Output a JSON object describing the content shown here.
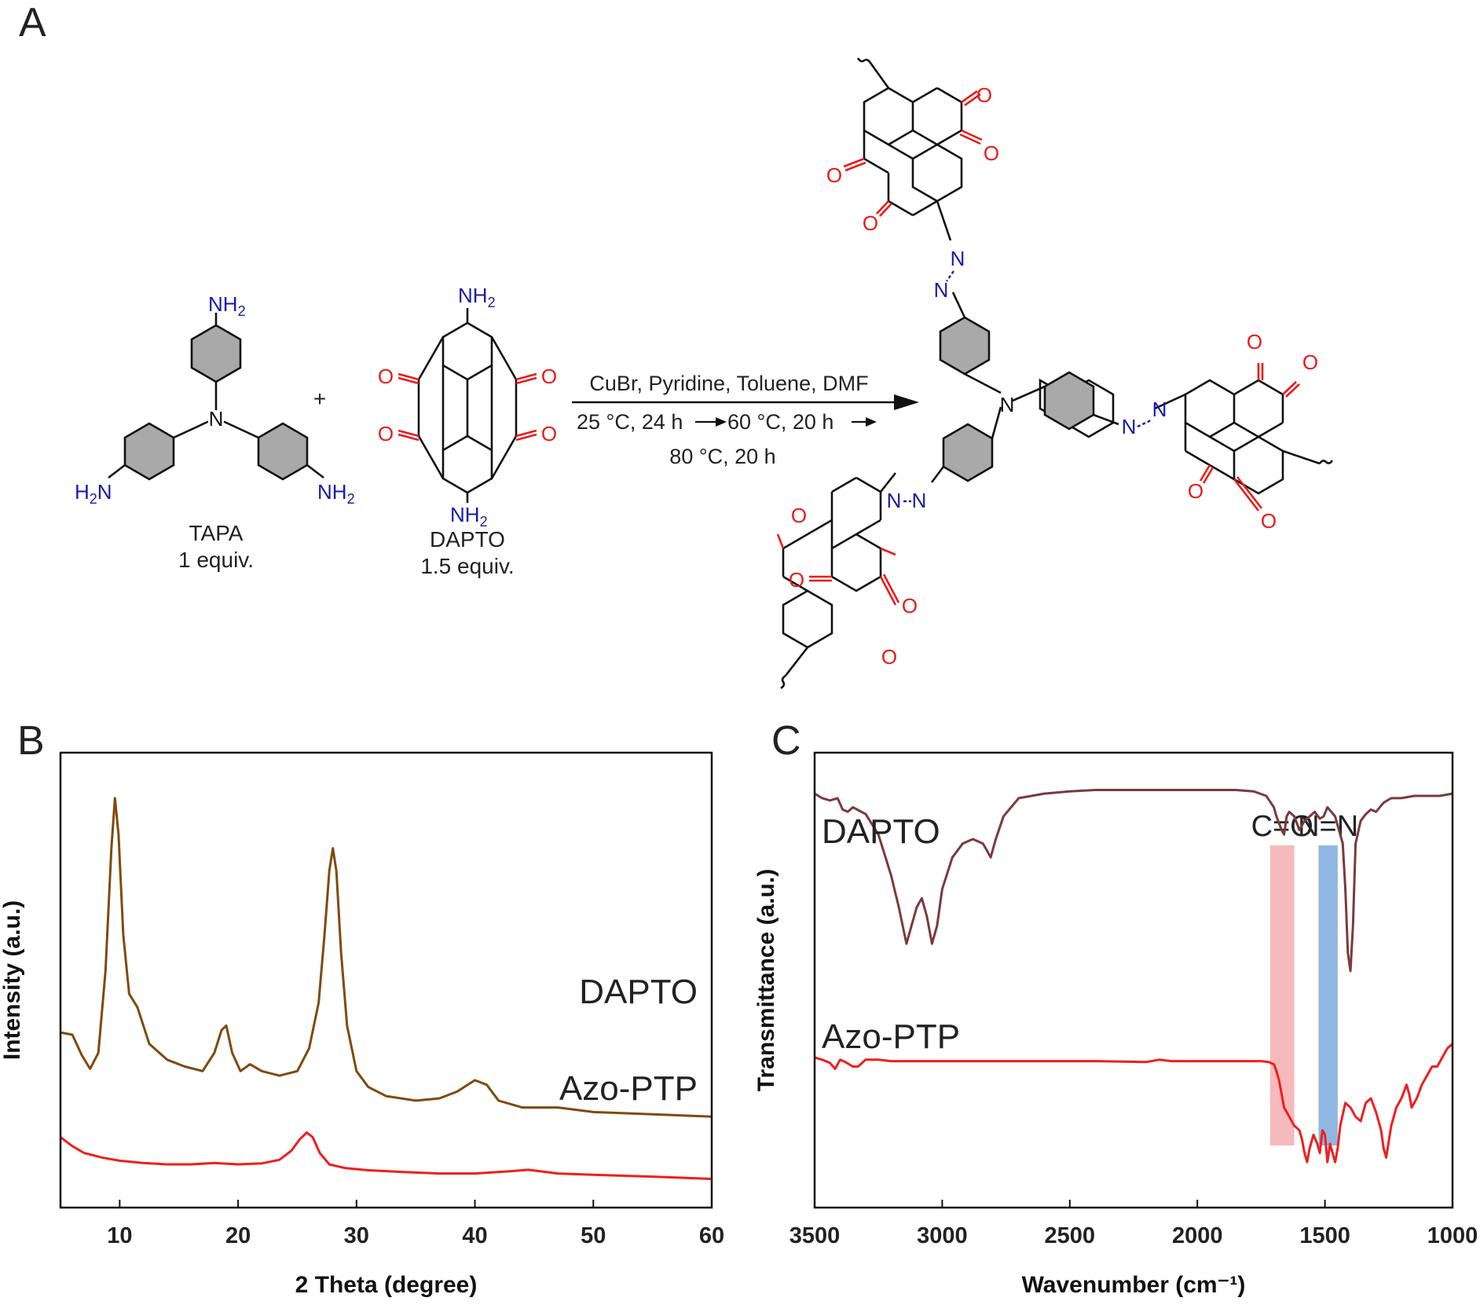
{
  "panels": {
    "a": {
      "letter": "A",
      "tapa": {
        "nh2_top": "NH",
        "nh2_left": "H",
        "nh2_left_n": "N",
        "nh2_right": "NH",
        "sub": "2",
        "name": "TAPA",
        "equiv": "1 equiv."
      },
      "plus": "+",
      "dapto": {
        "nh2": "NH",
        "sub": "2",
        "o": "O",
        "name": "DAPTO",
        "equiv": "1.5 equiv."
      },
      "conditions": {
        "line1": "CuBr, Pyridine, Toluene, DMF",
        "line2a": "25 °C, 24 h",
        "line2b": "60 °C, 20 h",
        "line3": "80 °C, 20 h"
      },
      "product": {
        "n": "N",
        "o": "O"
      }
    },
    "b": {
      "letter": "B"
    },
    "c": {
      "letter": "C"
    }
  },
  "chart_data": [
    {
      "type": "line",
      "xlabel": "2 Theta (degree)",
      "ylabel": "Intensity (a.u.)",
      "xlim": [
        5,
        60
      ],
      "ylim": [
        0,
        1
      ],
      "xticks": [
        10,
        20,
        30,
        40,
        50,
        60
      ],
      "series": [
        {
          "name": "DAPTO",
          "color": "#7f4a0f",
          "x": [
            5,
            6,
            6.8,
            7.5,
            8.2,
            8.8,
            9.3,
            9.6,
            9.9,
            10.3,
            10.8,
            11.5,
            12.5,
            14,
            15.5,
            17,
            18,
            18.6,
            19,
            19.5,
            20.2,
            21,
            22,
            23.5,
            25,
            26,
            26.8,
            27.3,
            27.7,
            28,
            28.3,
            28.7,
            29.2,
            30,
            31,
            32.5,
            35,
            37,
            38.5,
            40,
            41,
            42,
            44,
            47,
            50,
            55,
            60
          ],
          "y": [
            0.385,
            0.38,
            0.335,
            0.305,
            0.34,
            0.52,
            0.79,
            0.9,
            0.82,
            0.6,
            0.47,
            0.44,
            0.36,
            0.325,
            0.31,
            0.3,
            0.34,
            0.39,
            0.4,
            0.34,
            0.3,
            0.315,
            0.3,
            0.29,
            0.3,
            0.35,
            0.45,
            0.6,
            0.74,
            0.79,
            0.74,
            0.56,
            0.4,
            0.3,
            0.265,
            0.245,
            0.235,
            0.24,
            0.255,
            0.28,
            0.27,
            0.235,
            0.22,
            0.22,
            0.21,
            0.205,
            0.2
          ]
        },
        {
          "name": "Azo-PTP",
          "color": "#ee1f1f",
          "x": [
            5,
            6,
            7,
            8.5,
            10,
            12,
            14,
            16,
            18,
            20,
            22,
            23.5,
            24.5,
            25.2,
            25.8,
            26.3,
            26.9,
            27.7,
            29,
            31,
            34,
            37,
            40,
            43,
            44.5,
            47,
            50,
            55,
            60
          ],
          "y": [
            0.155,
            0.135,
            0.12,
            0.11,
            0.103,
            0.098,
            0.095,
            0.095,
            0.098,
            0.095,
            0.097,
            0.105,
            0.125,
            0.15,
            0.165,
            0.155,
            0.12,
            0.095,
            0.087,
            0.082,
            0.078,
            0.075,
            0.075,
            0.08,
            0.083,
            0.075,
            0.072,
            0.068,
            0.063
          ]
        }
      ]
    },
    {
      "type": "line",
      "xlabel": "Wavenumber (cm⁻¹)",
      "ylabel": "Transmittance (a.u.)",
      "xlim": [
        3500,
        1000
      ],
      "ylim": [
        0,
        1
      ],
      "xticks": [
        3500,
        3000,
        2500,
        2000,
        1500,
        1000
      ],
      "highlights": [
        {
          "label": "C=O",
          "from": 1715,
          "to": 1620,
          "color": "#f4a3a6"
        },
        {
          "label": "N=N",
          "from": 1525,
          "to": 1450,
          "color": "#6b9fd8"
        }
      ],
      "series": [
        {
          "name": "DAPTO",
          "color": "#7b3a3d",
          "x": [
            3500,
            3470,
            3440,
            3410,
            3390,
            3370,
            3350,
            3300,
            3250,
            3200,
            3170,
            3140,
            3120,
            3100,
            3080,
            3060,
            3040,
            3020,
            3000,
            2960,
            2920,
            2880,
            2840,
            2810,
            2790,
            2760,
            2700,
            2600,
            2500,
            2400,
            2200,
            2000,
            1850,
            1780,
            1730,
            1700,
            1690,
            1670,
            1660,
            1650,
            1640,
            1620,
            1600,
            1580,
            1560,
            1540,
            1520,
            1505,
            1490,
            1475,
            1460,
            1450,
            1440,
            1430,
            1420,
            1410,
            1400,
            1390,
            1380,
            1360,
            1340,
            1320,
            1300,
            1270,
            1240,
            1200,
            1150,
            1100,
            1050,
            1000
          ],
          "y": [
            0.91,
            0.9,
            0.895,
            0.9,
            0.875,
            0.87,
            0.88,
            0.865,
            0.82,
            0.73,
            0.66,
            0.58,
            0.62,
            0.66,
            0.68,
            0.64,
            0.58,
            0.62,
            0.7,
            0.77,
            0.8,
            0.81,
            0.8,
            0.77,
            0.81,
            0.86,
            0.9,
            0.91,
            0.915,
            0.918,
            0.918,
            0.918,
            0.918,
            0.915,
            0.905,
            0.88,
            0.86,
            0.83,
            0.82,
            0.86,
            0.87,
            0.86,
            0.83,
            0.85,
            0.86,
            0.87,
            0.855,
            0.86,
            0.88,
            0.87,
            0.86,
            0.84,
            0.82,
            0.8,
            0.7,
            0.56,
            0.52,
            0.62,
            0.8,
            0.85,
            0.865,
            0.875,
            0.87,
            0.89,
            0.9,
            0.9,
            0.905,
            0.905,
            0.905,
            0.91
          ]
        },
        {
          "name": "Azo-PTP",
          "color": "#ee1f1f",
          "x": [
            3500,
            3470,
            3440,
            3420,
            3400,
            3380,
            3350,
            3330,
            3300,
            3250,
            3200,
            3100,
            3000,
            2800,
            2600,
            2400,
            2200,
            2150,
            2100,
            2000,
            1900,
            1800,
            1750,
            1720,
            1700,
            1690,
            1680,
            1670,
            1660,
            1650,
            1640,
            1620,
            1600,
            1590,
            1580,
            1570,
            1560,
            1545,
            1530,
            1520,
            1510,
            1500,
            1490,
            1480,
            1470,
            1460,
            1450,
            1440,
            1420,
            1400,
            1380,
            1360,
            1340,
            1320,
            1300,
            1280,
            1270,
            1260,
            1240,
            1220,
            1200,
            1180,
            1170,
            1160,
            1140,
            1120,
            1100,
            1080,
            1060,
            1040,
            1020,
            1000
          ],
          "y": [
            0.33,
            0.325,
            0.318,
            0.305,
            0.325,
            0.32,
            0.31,
            0.31,
            0.325,
            0.325,
            0.322,
            0.322,
            0.322,
            0.322,
            0.322,
            0.322,
            0.32,
            0.325,
            0.322,
            0.322,
            0.322,
            0.322,
            0.322,
            0.32,
            0.315,
            0.3,
            0.28,
            0.25,
            0.22,
            0.21,
            0.2,
            0.18,
            0.17,
            0.15,
            0.12,
            0.1,
            0.13,
            0.16,
            0.14,
            0.12,
            0.17,
            0.16,
            0.1,
            0.14,
            0.12,
            0.1,
            0.13,
            0.18,
            0.23,
            0.22,
            0.2,
            0.19,
            0.23,
            0.24,
            0.21,
            0.17,
            0.13,
            0.11,
            0.18,
            0.22,
            0.24,
            0.27,
            0.25,
            0.22,
            0.24,
            0.27,
            0.29,
            0.31,
            0.31,
            0.33,
            0.35,
            0.36
          ]
        }
      ]
    }
  ]
}
